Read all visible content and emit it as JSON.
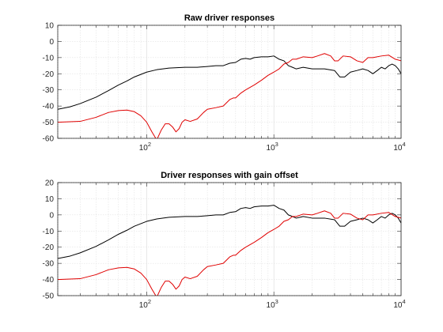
{
  "chart_data": [
    {
      "type": "line",
      "title": "Raw driver responses",
      "xscale": "log",
      "xlim": [
        20,
        10000
      ],
      "ylim": [
        -60,
        10
      ],
      "yticks": [
        "-60",
        "-50",
        "-40",
        "-30",
        "-20",
        "-10",
        "0",
        "10"
      ],
      "xticks": [
        {
          "base": "10",
          "exp": "2"
        },
        {
          "base": "10",
          "exp": "3"
        },
        {
          "base": "10",
          "exp": "4"
        }
      ],
      "grid": true,
      "series": [
        {
          "color": "#000000",
          "points": [
            [
              20,
              -42
            ],
            [
              25,
              -40.5
            ],
            [
              30,
              -38.5
            ],
            [
              40,
              -34.5
            ],
            [
              50,
              -30.5
            ],
            [
              60,
              -27
            ],
            [
              70,
              -24.5
            ],
            [
              80,
              -22
            ],
            [
              100,
              -19
            ],
            [
              120,
              -17.5
            ],
            [
              150,
              -16.5
            ],
            [
              200,
              -16
            ],
            [
              250,
              -16
            ],
            [
              300,
              -15.5
            ],
            [
              350,
              -15
            ],
            [
              400,
              -15
            ],
            [
              450,
              -13.5
            ],
            [
              500,
              -13
            ],
            [
              550,
              -11
            ],
            [
              600,
              -10.5
            ],
            [
              650,
              -11
            ],
            [
              700,
              -10
            ],
            [
              800,
              -9.5
            ],
            [
              900,
              -9.5
            ],
            [
              1000,
              -9
            ],
            [
              1100,
              -11
            ],
            [
              1200,
              -12
            ],
            [
              1300,
              -15
            ],
            [
              1400,
              -16
            ],
            [
              1500,
              -17
            ],
            [
              1700,
              -16
            ],
            [
              2000,
              -17
            ],
            [
              2500,
              -17
            ],
            [
              3000,
              -18
            ],
            [
              3300,
              -22
            ],
            [
              3600,
              -22
            ],
            [
              4000,
              -19
            ],
            [
              4500,
              -18
            ],
            [
              5000,
              -17
            ],
            [
              5500,
              -18
            ],
            [
              6000,
              -20
            ],
            [
              6500,
              -18
            ],
            [
              7000,
              -16
            ],
            [
              7500,
              -17
            ],
            [
              8000,
              -15
            ],
            [
              8500,
              -14
            ],
            [
              9000,
              -15
            ],
            [
              9500,
              -17
            ],
            [
              10000,
              -20
            ]
          ]
        },
        {
          "color": "#e00000",
          "points": [
            [
              20,
              -50
            ],
            [
              30,
              -49.5
            ],
            [
              40,
              -47
            ],
            [
              50,
              -44
            ],
            [
              60,
              -42.8
            ],
            [
              70,
              -42.5
            ],
            [
              80,
              -43.5
            ],
            [
              90,
              -46
            ],
            [
              100,
              -50
            ],
            [
              110,
              -56
            ],
            [
              120,
              -61
            ],
            [
              130,
              -55
            ],
            [
              140,
              -51
            ],
            [
              150,
              -51
            ],
            [
              160,
              -53
            ],
            [
              170,
              -56
            ],
            [
              180,
              -54
            ],
            [
              190,
              -50
            ],
            [
              200,
              -48.5
            ],
            [
              220,
              -49.5
            ],
            [
              250,
              -48
            ],
            [
              280,
              -44
            ],
            [
              300,
              -42
            ],
            [
              350,
              -41
            ],
            [
              400,
              -40
            ],
            [
              450,
              -36
            ],
            [
              480,
              -35
            ],
            [
              500,
              -35
            ],
            [
              550,
              -32
            ],
            [
              600,
              -30
            ],
            [
              700,
              -27
            ],
            [
              800,
              -24
            ],
            [
              900,
              -21
            ],
            [
              1000,
              -19
            ],
            [
              1100,
              -17
            ],
            [
              1200,
              -14
            ],
            [
              1300,
              -13
            ],
            [
              1400,
              -11
            ],
            [
              1500,
              -11
            ],
            [
              1700,
              -9.5
            ],
            [
              2000,
              -10
            ],
            [
              2200,
              -9
            ],
            [
              2500,
              -7.5
            ],
            [
              2800,
              -9
            ],
            [
              3000,
              -12
            ],
            [
              3200,
              -12
            ],
            [
              3500,
              -9
            ],
            [
              4000,
              -9.5
            ],
            [
              4500,
              -12
            ],
            [
              5000,
              -13
            ],
            [
              5500,
              -10
            ],
            [
              6000,
              -10
            ],
            [
              7000,
              -9
            ],
            [
              8000,
              -8.5
            ],
            [
              9000,
              -11
            ],
            [
              10000,
              -12
            ]
          ]
        }
      ]
    },
    {
      "type": "line",
      "title": "Driver responses with gain offset",
      "xscale": "log",
      "xlim": [
        20,
        10000
      ],
      "ylim": [
        -50,
        20
      ],
      "yticks": [
        "-50",
        "-40",
        "-30",
        "-20",
        "-10",
        "0",
        "10",
        "20"
      ],
      "xticks": [
        {
          "base": "10",
          "exp": "2"
        },
        {
          "base": "10",
          "exp": "3"
        },
        {
          "base": "10",
          "exp": "4"
        }
      ],
      "grid": true,
      "series": [
        {
          "color": "#000000",
          "points": [
            [
              20,
              -27
            ],
            [
              25,
              -25.5
            ],
            [
              30,
              -23.5
            ],
            [
              40,
              -19.5
            ],
            [
              50,
              -15.5
            ],
            [
              60,
              -12
            ],
            [
              70,
              -9.5
            ],
            [
              80,
              -7
            ],
            [
              100,
              -4
            ],
            [
              120,
              -2.5
            ],
            [
              150,
              -1.5
            ],
            [
              200,
              -1
            ],
            [
              250,
              -1
            ],
            [
              300,
              -0.5
            ],
            [
              350,
              0
            ],
            [
              400,
              0
            ],
            [
              450,
              1.5
            ],
            [
              500,
              2
            ],
            [
              550,
              4
            ],
            [
              600,
              4.5
            ],
            [
              650,
              4
            ],
            [
              700,
              5
            ],
            [
              800,
              5.5
            ],
            [
              900,
              5.5
            ],
            [
              1000,
              6
            ],
            [
              1100,
              4
            ],
            [
              1200,
              3
            ],
            [
              1300,
              0
            ],
            [
              1400,
              -1
            ],
            [
              1500,
              -2
            ],
            [
              1700,
              -1
            ],
            [
              2000,
              -2
            ],
            [
              2500,
              -2
            ],
            [
              3000,
              -3
            ],
            [
              3300,
              -7
            ],
            [
              3600,
              -7
            ],
            [
              4000,
              -4
            ],
            [
              4500,
              -3
            ],
            [
              5000,
              -2
            ],
            [
              5500,
              -3
            ],
            [
              6000,
              -5
            ],
            [
              6500,
              -3
            ],
            [
              7000,
              -1
            ],
            [
              7500,
              -2
            ],
            [
              8000,
              0
            ],
            [
              8500,
              1
            ],
            [
              9000,
              0
            ],
            [
              9500,
              -2
            ],
            [
              10000,
              -5
            ]
          ]
        },
        {
          "color": "#e00000",
          "points": [
            [
              20,
              -40
            ],
            [
              30,
              -39.5
            ],
            [
              40,
              -37
            ],
            [
              50,
              -34
            ],
            [
              60,
              -32.8
            ],
            [
              70,
              -32.5
            ],
            [
              80,
              -33.5
            ],
            [
              90,
              -36
            ],
            [
              100,
              -40
            ],
            [
              110,
              -46
            ],
            [
              120,
              -51
            ],
            [
              130,
              -45
            ],
            [
              140,
              -41
            ],
            [
              150,
              -41
            ],
            [
              160,
              -43
            ],
            [
              170,
              -46
            ],
            [
              180,
              -44
            ],
            [
              190,
              -40
            ],
            [
              200,
              -38.5
            ],
            [
              220,
              -39.5
            ],
            [
              250,
              -38
            ],
            [
              280,
              -34
            ],
            [
              300,
              -32
            ],
            [
              350,
              -31
            ],
            [
              400,
              -30
            ],
            [
              450,
              -26
            ],
            [
              480,
              -25
            ],
            [
              500,
              -25
            ],
            [
              550,
              -22
            ],
            [
              600,
              -20
            ],
            [
              700,
              -17
            ],
            [
              800,
              -14
            ],
            [
              900,
              -11
            ],
            [
              1000,
              -9
            ],
            [
              1100,
              -7
            ],
            [
              1200,
              -4
            ],
            [
              1300,
              -3
            ],
            [
              1400,
              -1
            ],
            [
              1500,
              -1
            ],
            [
              1700,
              0.5
            ],
            [
              2000,
              0
            ],
            [
              2200,
              1
            ],
            [
              2500,
              2.5
            ],
            [
              2800,
              1
            ],
            [
              3000,
              -2
            ],
            [
              3200,
              -2
            ],
            [
              3500,
              1
            ],
            [
              4000,
              0.5
            ],
            [
              4500,
              -2
            ],
            [
              5000,
              -3
            ],
            [
              5500,
              0
            ],
            [
              6000,
              0
            ],
            [
              7000,
              1
            ],
            [
              8000,
              1.5
            ],
            [
              9000,
              -1
            ],
            [
              10000,
              -2
            ]
          ]
        }
      ]
    }
  ]
}
